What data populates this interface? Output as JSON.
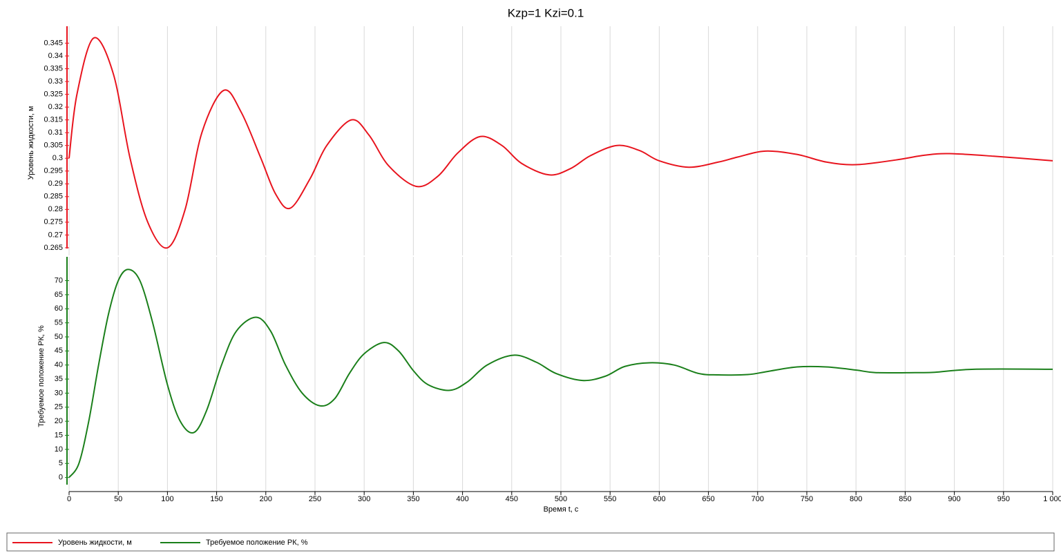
{
  "chart_data": [
    {
      "type": "line",
      "title": "Kzp=1 Kzi=0.1",
      "ylabel": "Уровень жидкости, м",
      "x": [
        0,
        8,
        25,
        45,
        62,
        80,
        100,
        118,
        135,
        157,
        175,
        195,
        210,
        225,
        245,
        262,
        287,
        305,
        325,
        353,
        375,
        395,
        418,
        440,
        460,
        488,
        510,
        530,
        557,
        580,
        600,
        630,
        660,
        680,
        708,
        740,
        770,
        800,
        840,
        870,
        895,
        940,
        1000
      ],
      "series": [
        {
          "name": "Уровень жидкости, м",
          "color": "#e8141e",
          "values": [
            0.3,
            0.325,
            0.347,
            0.333,
            0.3,
            0.275,
            0.265,
            0.28,
            0.31,
            0.3265,
            0.318,
            0.3,
            0.286,
            0.2805,
            0.292,
            0.305,
            0.315,
            0.309,
            0.297,
            0.289,
            0.293,
            0.302,
            0.3085,
            0.305,
            0.298,
            0.2935,
            0.296,
            0.301,
            0.305,
            0.303,
            0.299,
            0.2965,
            0.2985,
            0.3005,
            0.3028,
            0.3015,
            0.2985,
            0.2975,
            0.2993,
            0.3012,
            0.3018,
            0.3008,
            0.299
          ]
        }
      ],
      "xlim": [
        0,
        1000
      ],
      "ylim": [
        0.262,
        0.35
      ],
      "yticks": [
        0.265,
        0.27,
        0.275,
        0.28,
        0.285,
        0.29,
        0.295,
        0.3,
        0.305,
        0.31,
        0.315,
        0.32,
        0.325,
        0.33,
        0.335,
        0.34,
        0.345
      ],
      "grid": true
    },
    {
      "type": "line",
      "ylabel": "Требуемое положение РК, %",
      "xlabel": "Время t, с",
      "x": [
        0,
        10,
        20,
        30,
        40,
        50,
        60,
        72,
        85,
        100,
        113,
        127,
        140,
        155,
        170,
        190,
        205,
        220,
        237,
        255,
        270,
        285,
        300,
        320,
        335,
        350,
        365,
        387,
        405,
        425,
        452,
        475,
        495,
        522,
        545,
        565,
        590,
        615,
        640,
        660,
        690,
        710,
        740,
        770,
        800,
        820,
        860,
        880,
        920,
        1000
      ],
      "series": [
        {
          "name": "Требуемое положение РК, %",
          "color": "#1a7f1a",
          "values": [
            0,
            5,
            20,
            40,
            58,
            70,
            74,
            70,
            55,
            33,
            20,
            16,
            24,
            40,
            52,
            57,
            52,
            40,
            30,
            25.5,
            28,
            37,
            44,
            48,
            45,
            38,
            33,
            31,
            34,
            40,
            43.5,
            41,
            37,
            34.5,
            36,
            39.5,
            40.8,
            40,
            37,
            36.5,
            36.6,
            37.7,
            39.3,
            39.3,
            38.2,
            37.3,
            37.3,
            37.4,
            38.5,
            38.5
          ]
        }
      ],
      "xlim": [
        0,
        1000
      ],
      "ylim": [
        -5,
        77
      ],
      "yticks": [
        0,
        5,
        10,
        15,
        20,
        25,
        30,
        35,
        40,
        45,
        50,
        55,
        60,
        65,
        70
      ],
      "xticks": [
        0,
        50,
        100,
        150,
        200,
        250,
        300,
        350,
        400,
        450,
        500,
        550,
        600,
        650,
        700,
        750,
        800,
        850,
        900,
        950,
        {
          "value": 1000,
          "label": "1 000"
        }
      ],
      "grid": true,
      "legend": "bottom"
    }
  ]
}
